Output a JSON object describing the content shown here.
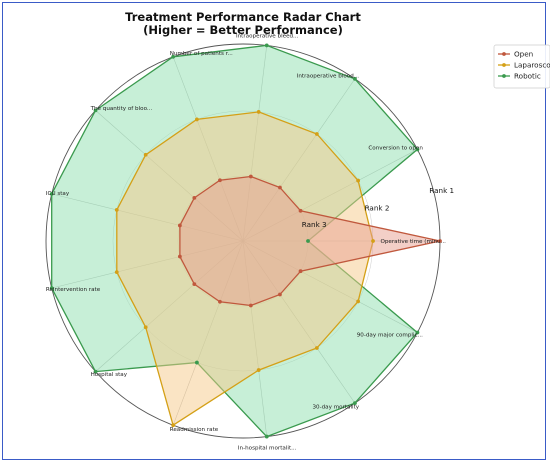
{
  "chart_data": {
    "type": "radar",
    "title": "Treatment Performance Radar Chart",
    "subtitle": "(Higher = Better Performance)",
    "axes": [
      "Operative time (minu...",
      "90-day major complic...",
      "30-day mortality",
      "In-hospital mortalit...",
      "Readmission rate",
      "Hospital stay",
      "Reintervention rate",
      "ICU stay",
      "The quantity of bloo...",
      "Number of patients r...",
      "Intraoperative bleed...",
      "Intraoperative blood...",
      "Conversion to open"
    ],
    "rank_labels": [
      "Rank 1",
      "Rank 2",
      "Rank 3"
    ],
    "rank_levels": [
      1.0,
      0.66,
      0.33
    ],
    "rlim": [
      0,
      1
    ],
    "grid": true,
    "legend_position": "top-right",
    "series": [
      {
        "name": "Open",
        "color": "#c0583d",
        "fill": "#e8a090",
        "values": [
          1.0,
          0.33,
          0.33,
          0.33,
          0.33,
          0.33,
          0.33,
          0.33,
          0.33,
          0.33,
          0.33,
          0.33,
          0.33
        ]
      },
      {
        "name": "Laparoscopic",
        "color": "#d4a017",
        "fill": "#f5c98a",
        "values": [
          0.66,
          0.66,
          0.66,
          0.66,
          1.0,
          0.66,
          0.66,
          0.66,
          0.66,
          0.66,
          0.66,
          0.66,
          0.66
        ]
      },
      {
        "name": "Robotic",
        "color": "#3a9a4e",
        "fill": "#8fe0b0",
        "values": [
          0.33,
          1.0,
          1.0,
          1.0,
          0.66,
          1.0,
          1.0,
          1.0,
          1.0,
          1.0,
          1.0,
          1.0,
          1.0
        ]
      }
    ],
    "legend_labels": [
      "Open",
      "Laparosco",
      "Robotic"
    ]
  }
}
